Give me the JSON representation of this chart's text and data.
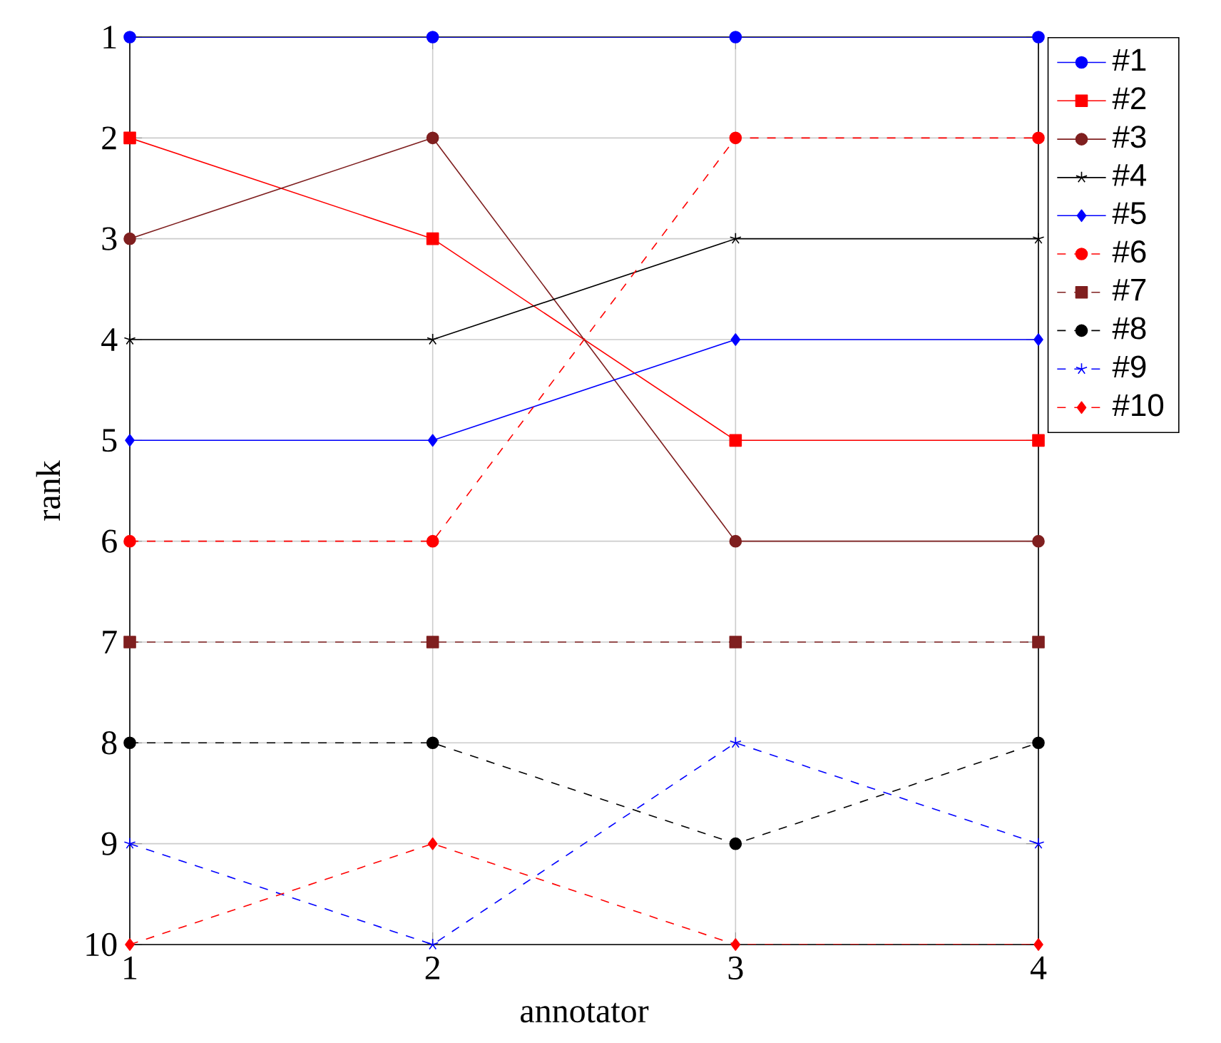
{
  "chart_data": {
    "type": "line",
    "xlabel": "annotator",
    "ylabel": "rank",
    "x": [
      1,
      2,
      3,
      4
    ],
    "xlim": [
      1,
      4
    ],
    "ylim": [
      10,
      1
    ],
    "xticks": [
      1,
      2,
      3,
      4
    ],
    "yticks": [
      1,
      2,
      3,
      4,
      5,
      6,
      7,
      8,
      9,
      10
    ],
    "grid": true,
    "legend": "right",
    "series": [
      {
        "name": "#1",
        "color": "#0000ff",
        "marker": "circle",
        "line_style": "solid",
        "values": [
          1,
          1,
          1,
          1
        ]
      },
      {
        "name": "#2",
        "color": "#ff0000",
        "marker": "square",
        "line_style": "solid",
        "values": [
          2,
          3,
          5,
          5
        ]
      },
      {
        "name": "#3",
        "color": "#7f1f1f",
        "marker": "circle",
        "line_style": "solid",
        "values": [
          3,
          2,
          6,
          6
        ]
      },
      {
        "name": "#4",
        "color": "#000000",
        "marker": "cross",
        "line_style": "solid",
        "values": [
          4,
          4,
          3,
          3
        ]
      },
      {
        "name": "#5",
        "color": "#0000ff",
        "marker": "diamond",
        "line_style": "solid",
        "values": [
          5,
          5,
          4,
          4
        ]
      },
      {
        "name": "#6",
        "color": "#ff0000",
        "marker": "circle",
        "line_style": "dashed",
        "values": [
          6,
          6,
          2,
          2
        ]
      },
      {
        "name": "#7",
        "color": "#7f1f1f",
        "marker": "square",
        "line_style": "dashed",
        "values": [
          7,
          7,
          7,
          7
        ]
      },
      {
        "name": "#8",
        "color": "#000000",
        "marker": "circle",
        "line_style": "dashed",
        "values": [
          8,
          8,
          9,
          8
        ]
      },
      {
        "name": "#9",
        "color": "#0000ff",
        "marker": "cross",
        "line_style": "dashed",
        "values": [
          9,
          10,
          8,
          9
        ]
      },
      {
        "name": "#10",
        "color": "#ff0000",
        "marker": "diamond",
        "line_style": "dashed",
        "values": [
          10,
          9,
          10,
          10
        ]
      }
    ]
  }
}
